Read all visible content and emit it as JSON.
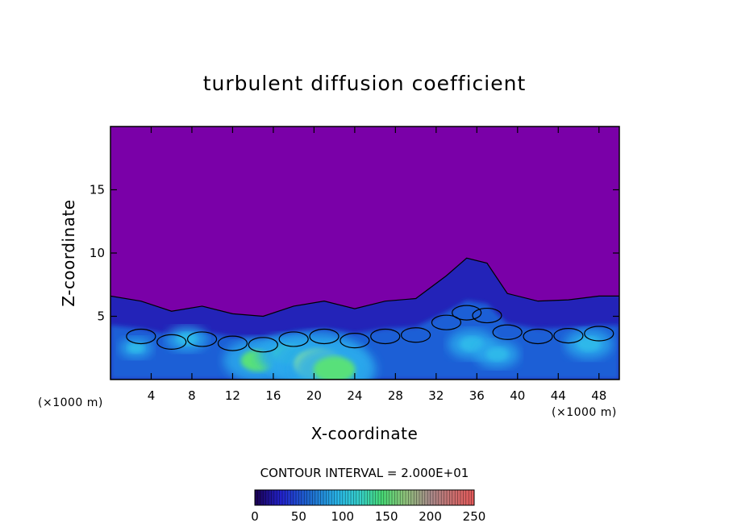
{
  "chart_data": {
    "type": "heatmap",
    "title": "turbulent diffusion coefficient",
    "xlabel": "X-coordinate",
    "ylabel": "Z-coordinate",
    "x_unit": "(×1000 m)",
    "y_unit": "(×1000 m)",
    "xlim": [
      0,
      50
    ],
    "ylim": [
      0,
      20
    ],
    "x_ticks": [
      4,
      8,
      12,
      16,
      20,
      24,
      28,
      32,
      36,
      40,
      44,
      48
    ],
    "y_ticks": [
      5,
      10,
      15
    ],
    "contour_interval_text": "CONTOUR INTERVAL = 2.000E+01",
    "colorbar": {
      "range": [
        0,
        250
      ],
      "tick_labels": [
        "0",
        "50",
        "100",
        "150",
        "200",
        "250"
      ],
      "tick_values": [
        0,
        50,
        100,
        150,
        200,
        250
      ]
    },
    "background_color": "#7a00a8",
    "turbulent_layer_top": [
      {
        "x": 0,
        "z": 6.6
      },
      {
        "x": 3,
        "z": 6.2
      },
      {
        "x": 6,
        "z": 5.4
      },
      {
        "x": 9,
        "z": 5.8
      },
      {
        "x": 12,
        "z": 5.2
      },
      {
        "x": 15,
        "z": 5.0
      },
      {
        "x": 18,
        "z": 5.8
      },
      {
        "x": 21,
        "z": 6.2
      },
      {
        "x": 24,
        "z": 5.6
      },
      {
        "x": 27,
        "z": 6.2
      },
      {
        "x": 30,
        "z": 6.4
      },
      {
        "x": 33,
        "z": 8.2
      },
      {
        "x": 35,
        "z": 9.6
      },
      {
        "x": 37,
        "z": 9.2
      },
      {
        "x": 39,
        "z": 6.8
      },
      {
        "x": 42,
        "z": 6.2
      },
      {
        "x": 45,
        "z": 6.3
      },
      {
        "x": 48,
        "z": 6.6
      },
      {
        "x": 50,
        "z": 6.6
      }
    ],
    "high_value_cores": [
      {
        "x": 14.5,
        "z": 1.5,
        "level": 110
      },
      {
        "x": 17.5,
        "z": 2.0,
        "level": 100
      },
      {
        "x": 20.5,
        "z": 1.2,
        "level": 150
      },
      {
        "x": 22.0,
        "z": 0.8,
        "level": 130
      },
      {
        "x": 35.5,
        "z": 2.8,
        "level": 80
      },
      {
        "x": 38.0,
        "z": 2.0,
        "level": 75
      },
      {
        "x": 47.0,
        "z": 2.8,
        "level": 80
      },
      {
        "x": 7.5,
        "z": 3.2,
        "level": 70
      },
      {
        "x": 2.5,
        "z": 2.5,
        "level": 60
      }
    ]
  }
}
